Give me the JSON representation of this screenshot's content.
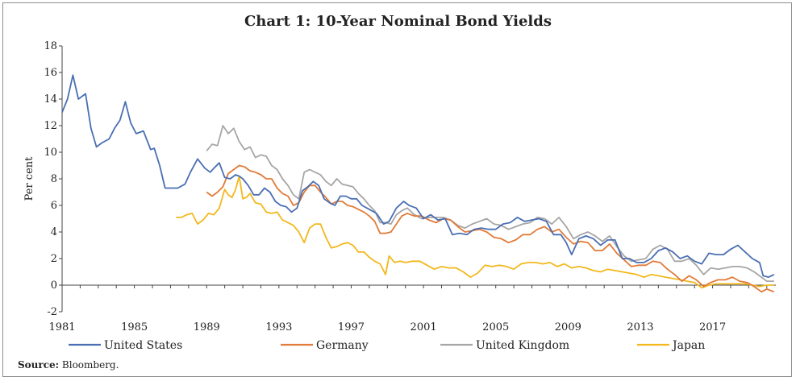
{
  "source": {
    "label": "Source:",
    "text": "Bloomberg."
  },
  "chart_data": {
    "type": "line",
    "title": "Chart 1: 10-Year Nominal Bond Yields",
    "xlabel": "",
    "ylabel": "Per cent",
    "xlim": [
      1981,
      2020.5
    ],
    "ylim": [
      -2,
      18
    ],
    "yticks": [
      -2,
      0,
      2,
      4,
      6,
      8,
      10,
      12,
      14,
      16,
      18
    ],
    "xticks": [
      1981,
      1985,
      1989,
      1993,
      1997,
      2001,
      2005,
      2009,
      2013,
      2017
    ],
    "legend": "bottom",
    "series": [
      {
        "name": "United States",
        "color": "#4a6fb3",
        "x": [
          1981,
          1981.3,
          1981.6,
          1981.9,
          1982.3,
          1982.6,
          1982.9,
          1983.2,
          1983.6,
          1983.9,
          1984.2,
          1984.5,
          1984.8,
          1985.1,
          1985.5,
          1985.9,
          1986.1,
          1986.4,
          1986.7,
          1987.1,
          1987.4,
          1987.8,
          1988.1,
          1988.5,
          1988.9,
          1989.2,
          1989.4,
          1989.7,
          1990.0,
          1990.3,
          1990.6,
          1990.8,
          1991.0,
          1991.3,
          1991.6,
          1991.9,
          1992.2,
          1992.5,
          1992.8,
          1993.1,
          1993.4,
          1993.7,
          1994.0,
          1994.3,
          1994.6,
          1994.9,
          1995.2,
          1995.5,
          1995.8,
          1996.1,
          1996.4,
          1996.7,
          1997.0,
          1997.3,
          1997.6,
          1998.0,
          1998.4,
          1998.8,
          1999.1,
          1999.5,
          1999.9,
          2000.2,
          2000.6,
          2001.0,
          2001.4,
          2001.8,
          2002.2,
          2002.6,
          2003.0,
          2003.4,
          2003.8,
          2004.2,
          2004.6,
          2005.0,
          2005.4,
          2005.8,
          2006.2,
          2006.6,
          2007.0,
          2007.4,
          2007.8,
          2008.2,
          2008.6,
          2008.9,
          2009.2,
          2009.6,
          2010.0,
          2010.4,
          2010.8,
          2011.2,
          2011.6,
          2012.0,
          2012.4,
          2012.8,
          2013.2,
          2013.6,
          2014.0,
          2014.4,
          2014.8,
          2015.2,
          2015.6,
          2016.0,
          2016.4,
          2016.8,
          2017.2,
          2017.6,
          2018.0,
          2018.4,
          2018.8,
          2019.2,
          2019.6,
          2019.8,
          2020.1,
          2020.4
        ],
        "values": [
          13.0,
          14.0,
          15.8,
          14.0,
          14.4,
          11.8,
          10.4,
          10.7,
          11.0,
          11.8,
          12.4,
          13.8,
          12.2,
          11.4,
          11.6,
          10.2,
          10.3,
          9.0,
          7.3,
          7.3,
          7.3,
          7.6,
          8.5,
          9.5,
          8.8,
          8.5,
          8.8,
          9.2,
          8.1,
          8.0,
          8.3,
          8.2,
          8.0,
          7.5,
          6.8,
          6.8,
          7.3,
          7.0,
          6.3,
          6.0,
          5.9,
          5.5,
          5.8,
          7.1,
          7.4,
          7.8,
          7.5,
          6.5,
          6.2,
          6.0,
          6.7,
          6.7,
          6.5,
          6.5,
          6.0,
          5.7,
          5.4,
          4.6,
          4.8,
          5.8,
          6.3,
          6.0,
          5.8,
          5.0,
          5.3,
          4.9,
          5.0,
          3.8,
          3.9,
          3.8,
          4.2,
          4.3,
          4.2,
          4.2,
          4.6,
          4.7,
          5.1,
          4.8,
          4.9,
          5.0,
          4.8,
          3.8,
          3.8,
          3.2,
          2.3,
          3.5,
          3.7,
          3.5,
          3.0,
          3.4,
          3.4,
          2.0,
          2.0,
          1.7,
          1.7,
          2.0,
          2.6,
          2.8,
          2.5,
          2.0,
          2.2,
          1.8,
          1.6,
          2.4,
          2.3,
          2.3,
          2.7,
          3.0,
          2.5,
          2.0,
          1.7,
          0.7,
          0.6,
          0.8
        ]
      },
      {
        "name": "Germany",
        "color": "#e07b39",
        "x": [
          1989.0,
          1989.3,
          1989.6,
          1989.9,
          1990.2,
          1990.5,
          1990.8,
          1991.1,
          1991.4,
          1991.7,
          1992.0,
          1992.3,
          1992.6,
          1992.9,
          1993.2,
          1993.5,
          1993.8,
          1994.1,
          1994.4,
          1994.7,
          1995.0,
          1995.3,
          1995.6,
          1995.9,
          1996.2,
          1996.5,
          1996.8,
          1997.1,
          1997.4,
          1997.7,
          1998.0,
          1998.3,
          1998.6,
          1998.9,
          1999.2,
          1999.5,
          1999.8,
          2000.1,
          2000.5,
          2000.9,
          2001.3,
          2001.7,
          2002.1,
          2002.5,
          2002.9,
          2003.3,
          2003.7,
          2004.1,
          2004.5,
          2004.9,
          2005.3,
          2005.7,
          2006.1,
          2006.5,
          2006.9,
          2007.3,
          2007.7,
          2008.1,
          2008.5,
          2008.9,
          2009.3,
          2009.7,
          2010.1,
          2010.5,
          2010.9,
          2011.3,
          2011.7,
          2012.1,
          2012.5,
          2012.9,
          2013.3,
          2013.7,
          2014.1,
          2014.5,
          2014.9,
          2015.3,
          2015.7,
          2016.1,
          2016.5,
          2016.9,
          2017.3,
          2017.7,
          2018.1,
          2018.5,
          2018.9,
          2019.3,
          2019.7,
          2020.0,
          2020.4
        ],
        "values": [
          7.0,
          6.7,
          7.0,
          7.4,
          8.4,
          8.7,
          9.0,
          8.9,
          8.6,
          8.5,
          8.3,
          8.0,
          8.0,
          7.3,
          6.9,
          6.7,
          6.0,
          6.2,
          7.0,
          7.5,
          7.5,
          7.0,
          6.6,
          6.1,
          6.3,
          6.3,
          6.0,
          5.9,
          5.7,
          5.5,
          5.2,
          4.8,
          3.9,
          3.9,
          4.0,
          4.6,
          5.2,
          5.4,
          5.2,
          5.2,
          4.9,
          4.7,
          5.0,
          4.9,
          4.4,
          4.0,
          4.1,
          4.2,
          4.0,
          3.6,
          3.5,
          3.2,
          3.4,
          3.8,
          3.8,
          4.2,
          4.4,
          4.0,
          4.2,
          3.6,
          3.1,
          3.3,
          3.2,
          2.6,
          2.6,
          3.1,
          2.4,
          1.9,
          1.4,
          1.5,
          1.5,
          1.8,
          1.7,
          1.2,
          0.8,
          0.3,
          0.7,
          0.4,
          -0.1,
          0.2,
          0.4,
          0.4,
          0.6,
          0.3,
          0.2,
          -0.1,
          -0.5,
          -0.3,
          -0.5
        ]
      },
      {
        "name": "United Kingdom",
        "color": "#a6a6a6",
        "x": [
          1989.0,
          1989.3,
          1989.6,
          1989.9,
          1990.2,
          1990.5,
          1990.8,
          1991.1,
          1991.4,
          1991.7,
          1992.0,
          1992.3,
          1992.6,
          1992.9,
          1993.2,
          1993.5,
          1993.8,
          1994.1,
          1994.4,
          1994.7,
          1995.0,
          1995.3,
          1995.6,
          1995.9,
          1996.2,
          1996.5,
          1996.8,
          1997.1,
          1997.4,
          1997.7,
          1998.0,
          1998.3,
          1998.6,
          1998.9,
          1999.2,
          1999.5,
          1999.8,
          2000.1,
          2000.5,
          2000.9,
          2001.3,
          2001.7,
          2002.1,
          2002.5,
          2002.9,
          2003.3,
          2003.7,
          2004.1,
          2004.5,
          2004.9,
          2005.3,
          2005.7,
          2006.1,
          2006.5,
          2006.9,
          2007.3,
          2007.7,
          2008.1,
          2008.5,
          2008.9,
          2009.3,
          2009.7,
          2010.1,
          2010.5,
          2010.9,
          2011.3,
          2011.7,
          2012.1,
          2012.5,
          2012.9,
          2013.3,
          2013.7,
          2014.1,
          2014.5,
          2014.9,
          2015.3,
          2015.7,
          2016.1,
          2016.5,
          2016.9,
          2017.3,
          2017.7,
          2018.1,
          2018.5,
          2018.9,
          2019.3,
          2019.7,
          2020.0,
          2020.4
        ],
        "values": [
          10.1,
          10.6,
          10.5,
          12.0,
          11.4,
          11.8,
          10.8,
          10.2,
          10.4,
          9.6,
          9.8,
          9.7,
          9.0,
          8.7,
          8.0,
          7.5,
          6.8,
          6.5,
          8.5,
          8.7,
          8.5,
          8.3,
          7.8,
          7.5,
          8.0,
          7.6,
          7.5,
          7.4,
          6.9,
          6.5,
          6.0,
          5.6,
          4.7,
          4.7,
          4.6,
          5.3,
          5.6,
          5.8,
          5.3,
          5.0,
          5.1,
          5.1,
          5.1,
          4.9,
          4.5,
          4.3,
          4.6,
          4.8,
          5.0,
          4.6,
          4.5,
          4.2,
          4.4,
          4.6,
          4.7,
          5.1,
          5.0,
          4.6,
          5.1,
          4.4,
          3.5,
          3.8,
          4.0,
          3.7,
          3.3,
          3.7,
          2.9,
          2.2,
          1.8,
          1.9,
          2.0,
          2.7,
          3.0,
          2.7,
          1.8,
          1.8,
          2.0,
          1.5,
          0.8,
          1.3,
          1.2,
          1.3,
          1.4,
          1.4,
          1.3,
          1.0,
          0.6,
          0.3,
          0.3
        ]
      },
      {
        "name": "Japan",
        "color": "#f2b81d",
        "x": [
          1987.3,
          1987.6,
          1987.9,
          1988.2,
          1988.5,
          1988.8,
          1989.1,
          1989.4,
          1989.7,
          1990.0,
          1990.2,
          1990.4,
          1990.6,
          1990.8,
          1991.0,
          1991.2,
          1991.4,
          1991.7,
          1992.0,
          1992.3,
          1992.6,
          1992.9,
          1993.2,
          1993.5,
          1993.8,
          1994.1,
          1994.4,
          1994.7,
          1995.0,
          1995.3,
          1995.6,
          1995.9,
          1996.2,
          1996.5,
          1996.8,
          1997.1,
          1997.4,
          1997.7,
          1998.0,
          1998.3,
          1998.6,
          1998.9,
          1999.1,
          1999.4,
          1999.7,
          2000.0,
          2000.4,
          2000.8,
          2001.2,
          2001.6,
          2002.0,
          2002.4,
          2002.8,
          2003.2,
          2003.6,
          2004.0,
          2004.4,
          2004.8,
          2005.2,
          2005.6,
          2006.0,
          2006.4,
          2006.8,
          2007.2,
          2007.6,
          2008.0,
          2008.4,
          2008.8,
          2009.2,
          2009.6,
          2010.0,
          2010.4,
          2010.8,
          2011.2,
          2011.6,
          2012.0,
          2012.4,
          2012.8,
          2013.2,
          2013.6,
          2014.0,
          2014.4,
          2014.8,
          2015.2,
          2015.6,
          2016.0,
          2016.4,
          2016.8,
          2017.2,
          2017.6,
          2018.0,
          2018.4,
          2018.8,
          2019.2,
          2019.6,
          2020.0,
          2020.4
        ],
        "values": [
          5.1,
          5.1,
          5.3,
          5.4,
          4.6,
          4.9,
          5.4,
          5.3,
          5.8,
          7.2,
          6.8,
          6.6,
          7.2,
          8.2,
          6.5,
          6.6,
          6.9,
          6.2,
          6.1,
          5.5,
          5.4,
          5.5,
          4.9,
          4.7,
          4.5,
          4.0,
          3.2,
          4.3,
          4.6,
          4.6,
          3.6,
          2.8,
          2.9,
          3.1,
          3.2,
          3.0,
          2.5,
          2.5,
          2.1,
          1.8,
          1.6,
          0.8,
          2.2,
          1.7,
          1.8,
          1.7,
          1.8,
          1.8,
          1.5,
          1.2,
          1.4,
          1.3,
          1.3,
          1.0,
          0.6,
          0.9,
          1.5,
          1.4,
          1.5,
          1.4,
          1.2,
          1.6,
          1.7,
          1.7,
          1.6,
          1.7,
          1.4,
          1.6,
          1.3,
          1.4,
          1.3,
          1.1,
          1.0,
          1.2,
          1.1,
          1.0,
          0.9,
          0.8,
          0.6,
          0.8,
          0.7,
          0.6,
          0.5,
          0.4,
          0.3,
          0.2,
          -0.2,
          0.0,
          0.1,
          0.1,
          0.1,
          0.1,
          0.1,
          0.0,
          -0.1,
          0.0,
          0.0
        ]
      }
    ]
  }
}
